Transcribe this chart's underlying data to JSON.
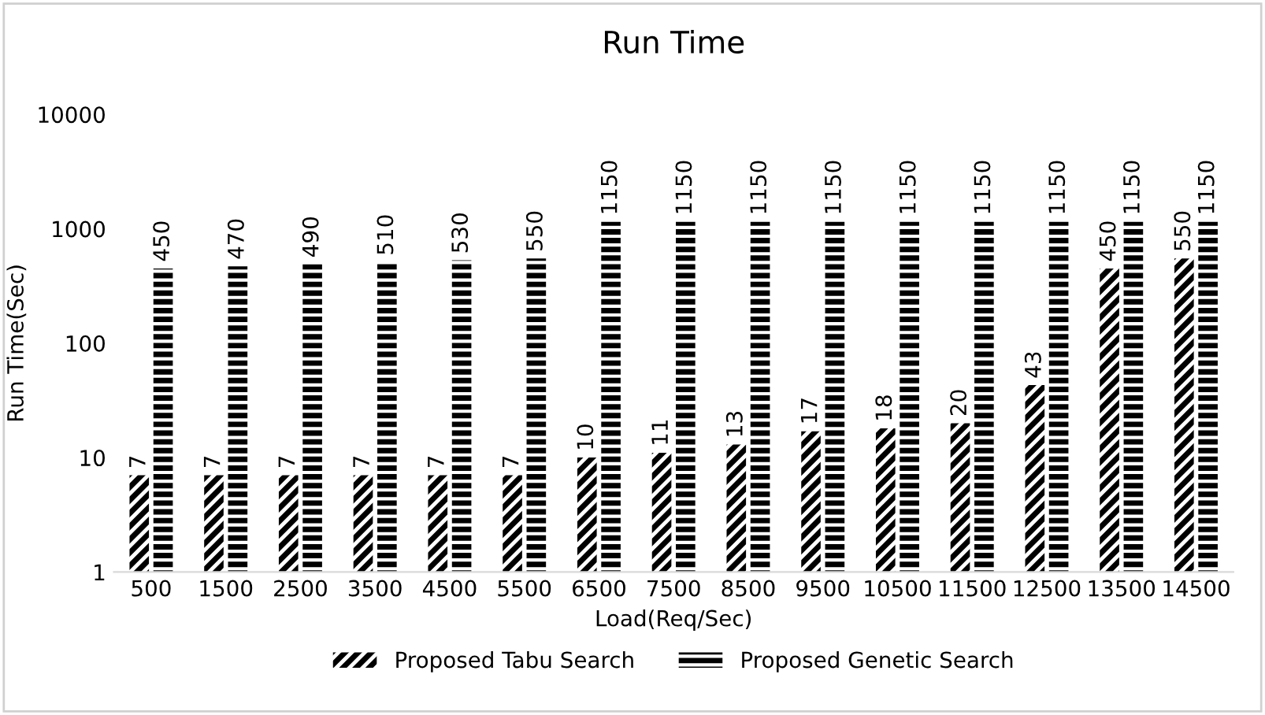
{
  "chart_data": {
    "type": "bar",
    "title": "Run Time",
    "xlabel": "Load(Req/Sec)",
    "ylabel": "Run Time(Sec)",
    "categories": [
      "500",
      "1500",
      "2500",
      "3500",
      "4500",
      "5500",
      "6500",
      "7500",
      "8500",
      "9500",
      "10500",
      "11500",
      "12500",
      "13500",
      "14500"
    ],
    "series": [
      {
        "name": "Proposed Tabu Search",
        "values": [
          7,
          7,
          7,
          7,
          7,
          7,
          10,
          11,
          13,
          17,
          18,
          20,
          43,
          450,
          550
        ]
      },
      {
        "name": "Proposed Genetic Search",
        "values": [
          450,
          470,
          490,
          510,
          530,
          550,
          1150,
          1150,
          1150,
          1150,
          1150,
          1150,
          1150,
          1150,
          1150
        ]
      }
    ],
    "log": true,
    "ylim": [
      1,
      10000
    ],
    "yticks": [
      1,
      10,
      100,
      1000,
      10000
    ],
    "grid": false,
    "legend": "bottom",
    "data_labels": true
  }
}
